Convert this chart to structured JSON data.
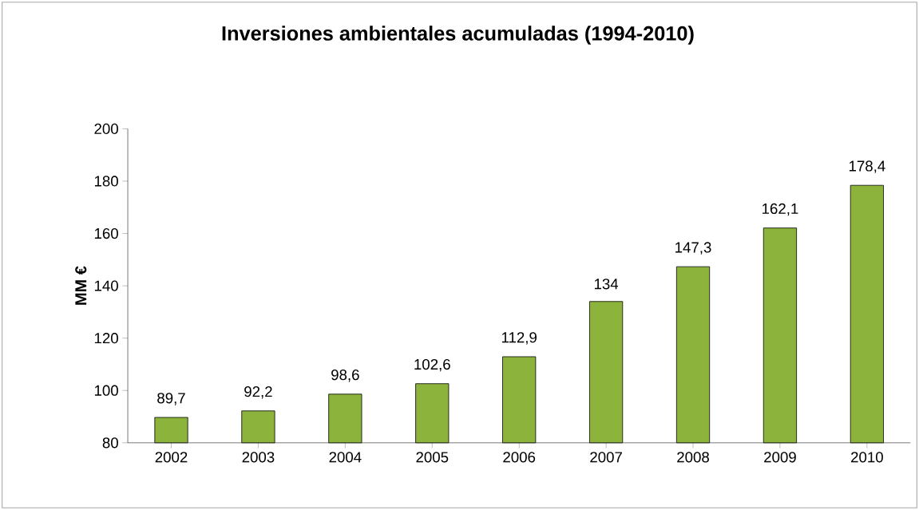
{
  "chart_data": {
    "type": "bar",
    "title": "Inversiones ambientales acumuladas (1994-2010)",
    "ylabel": "MM €",
    "categories": [
      "2002",
      "2003",
      "2004",
      "2005",
      "2006",
      "2007",
      "2008",
      "2009",
      "2010"
    ],
    "values": [
      89.7,
      92.2,
      98.6,
      102.6,
      112.9,
      134,
      147.3,
      162.1,
      178.4
    ],
    "value_labels": [
      "89,7",
      "92,2",
      "98,6",
      "102,6",
      "112,9",
      "134",
      "147,3",
      "162,1",
      "178,4"
    ],
    "color": "#8cb43c",
    "ylim": [
      80,
      200
    ],
    "yticks": [
      80,
      100,
      120,
      140,
      160,
      180,
      200
    ],
    "grid": false
  }
}
